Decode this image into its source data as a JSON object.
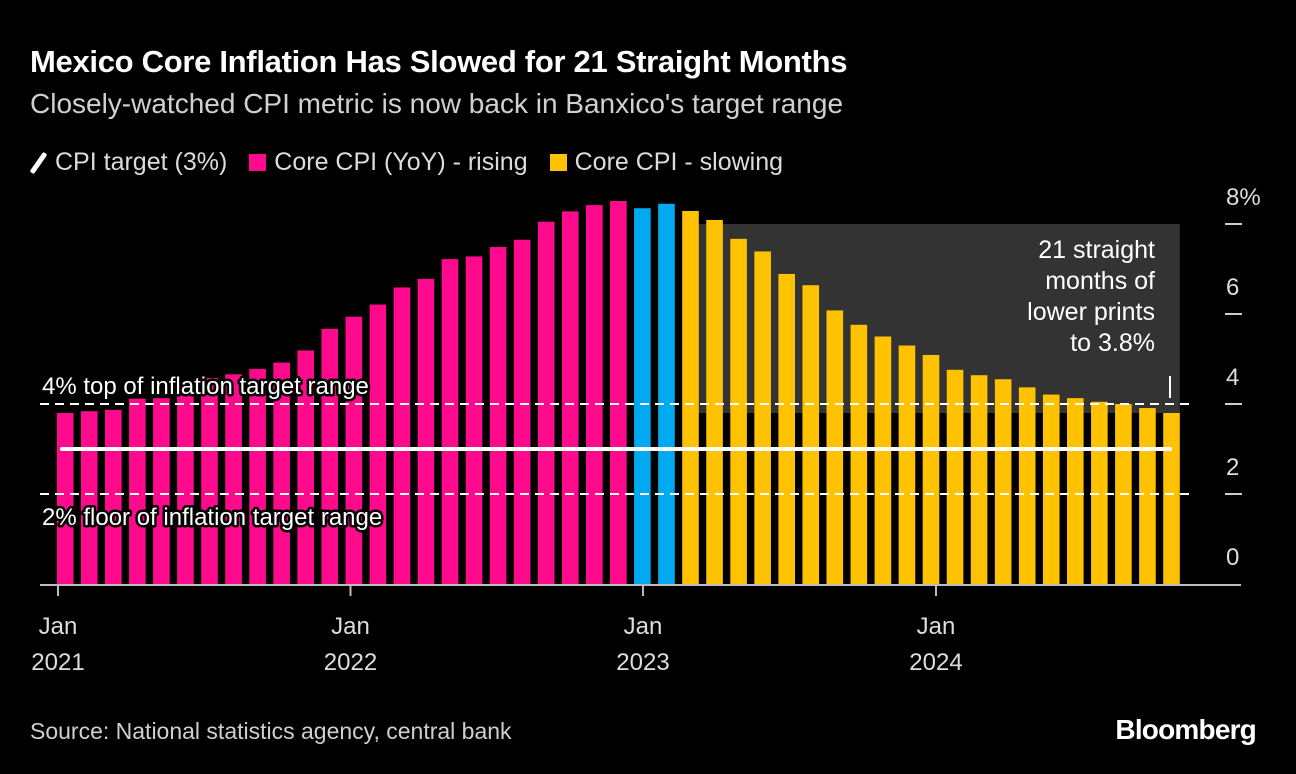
{
  "title": "Mexico Core Inflation Has Slowed for 21 Straight Months",
  "subtitle": "Closely-watched CPI metric is now back in Banxico's target range",
  "source": "Source: National statistics agency, central bank",
  "logo": "Bloomberg",
  "colors": {
    "background": "#000000",
    "rising": "#ff0a8c",
    "neutral": "#00aaf0",
    "slowing": "#ffc200",
    "target": "#ffffff",
    "annotation_box": "#333333"
  },
  "chart_data": {
    "type": "bar",
    "legend": [
      {
        "label": "CPI target (3%)",
        "kind": "line"
      },
      {
        "label": "Core CPI (YoY) - rising",
        "kind": "rising"
      },
      {
        "label": "Core CPI - slowing",
        "kind": "slowing"
      }
    ],
    "legend_position": "top-left",
    "categories": [
      "Dec 2020",
      "Jan 2021",
      "Feb 2021",
      "Mar 2021",
      "Apr 2021",
      "May 2021",
      "Jun 2021",
      "Jul 2021",
      "Aug 2021",
      "Sep 2021",
      "Oct 2021",
      "Nov 2021",
      "Dec 2021",
      "Jan 2022",
      "Feb 2022",
      "Mar 2022",
      "Apr 2022",
      "May 2022",
      "Jun 2022",
      "Jul 2022",
      "Aug 2022",
      "Sep 2022",
      "Oct 2022",
      "Nov 2022",
      "Dec 2022",
      "Jan 2023",
      "Feb 2023",
      "Mar 2023",
      "Apr 2023",
      "May 2023",
      "Jun 2023",
      "Jul 2023",
      "Aug 2023",
      "Sep 2023",
      "Oct 2023",
      "Nov 2023",
      "Dec 2023",
      "Jan 2024",
      "Feb 2024",
      "Mar 2024",
      "Apr 2024",
      "May 2024",
      "Jun 2024",
      "Jul 2024",
      "Aug 2024",
      "Sep 2024",
      "Oct 2024"
    ],
    "values": [
      3.8,
      3.84,
      3.87,
      4.12,
      4.13,
      4.37,
      4.58,
      4.66,
      4.78,
      4.92,
      5.19,
      5.67,
      5.94,
      6.21,
      6.59,
      6.78,
      7.22,
      7.28,
      7.49,
      7.65,
      8.05,
      8.28,
      8.42,
      8.51,
      8.35,
      8.45,
      8.29,
      8.09,
      7.67,
      7.39,
      6.89,
      6.64,
      6.08,
      5.76,
      5.5,
      5.3,
      5.09,
      4.76,
      4.64,
      4.55,
      4.37,
      4.21,
      4.13,
      4.05,
      4.0,
      3.91,
      3.8
    ],
    "status": [
      "rising",
      "rising",
      "rising",
      "rising",
      "rising",
      "rising",
      "rising",
      "rising",
      "rising",
      "rising",
      "rising",
      "rising",
      "rising",
      "rising",
      "rising",
      "rising",
      "rising",
      "rising",
      "rising",
      "rising",
      "rising",
      "rising",
      "rising",
      "rising",
      "neutral",
      "neutral",
      "slowing",
      "slowing",
      "slowing",
      "slowing",
      "slowing",
      "slowing",
      "slowing",
      "slowing",
      "slowing",
      "slowing",
      "slowing",
      "slowing",
      "slowing",
      "slowing",
      "slowing",
      "slowing",
      "slowing",
      "slowing",
      "slowing",
      "slowing",
      "slowing"
    ],
    "target": 3,
    "target_range": [
      2,
      4
    ],
    "reference_labels": {
      "top": "4% top of inflation target range",
      "floor": "2% floor of inflation target range"
    },
    "annotation": [
      "21 straight",
      "months of",
      "lower prints",
      "to 3.8%"
    ],
    "ylim": [
      0,
      8
    ],
    "yticks": [
      "0",
      "2",
      "4",
      "6",
      "8%"
    ],
    "ytick_values": [
      0,
      2,
      4,
      6,
      8
    ],
    "y_axis_side": "right",
    "xticks": [
      [
        "Jan",
        "2021"
      ],
      [
        "Jan",
        "2022"
      ],
      [
        "Jan",
        "2023"
      ],
      [
        "Jan",
        "2024"
      ]
    ],
    "grid": false
  }
}
